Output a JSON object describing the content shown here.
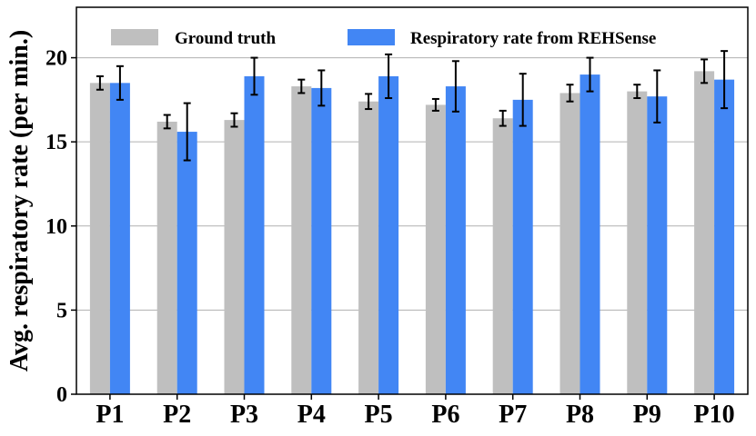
{
  "chart_data": {
    "type": "bar",
    "title": "",
    "xlabel": "",
    "ylabel": "Avg. respiratory rate (per min.)",
    "ylim": [
      0,
      23
    ],
    "yticks": [
      0,
      5,
      10,
      15,
      20
    ],
    "grid": "horizontal",
    "legend_position": "top",
    "categories": [
      "P1",
      "P2",
      "P3",
      "P4",
      "P5",
      "P6",
      "P7",
      "P8",
      "P9",
      "P10"
    ],
    "series": [
      {
        "name": "Ground truth",
        "color": "#bfbfbf",
        "values": [
          18.5,
          16.2,
          16.3,
          18.3,
          17.4,
          17.2,
          16.4,
          17.9,
          18.0,
          19.2
        ],
        "errors": [
          0.4,
          0.4,
          0.4,
          0.4,
          0.45,
          0.35,
          0.45,
          0.5,
          0.4,
          0.7
        ]
      },
      {
        "name": "Respiratory rate from REHSense",
        "color": "#4286f4",
        "values": [
          18.5,
          15.6,
          18.9,
          18.2,
          18.9,
          18.3,
          17.5,
          19.0,
          17.7,
          18.7
        ],
        "errors": [
          1.0,
          1.7,
          1.1,
          1.05,
          1.3,
          1.5,
          1.55,
          1.0,
          1.55,
          1.7
        ]
      }
    ]
  }
}
